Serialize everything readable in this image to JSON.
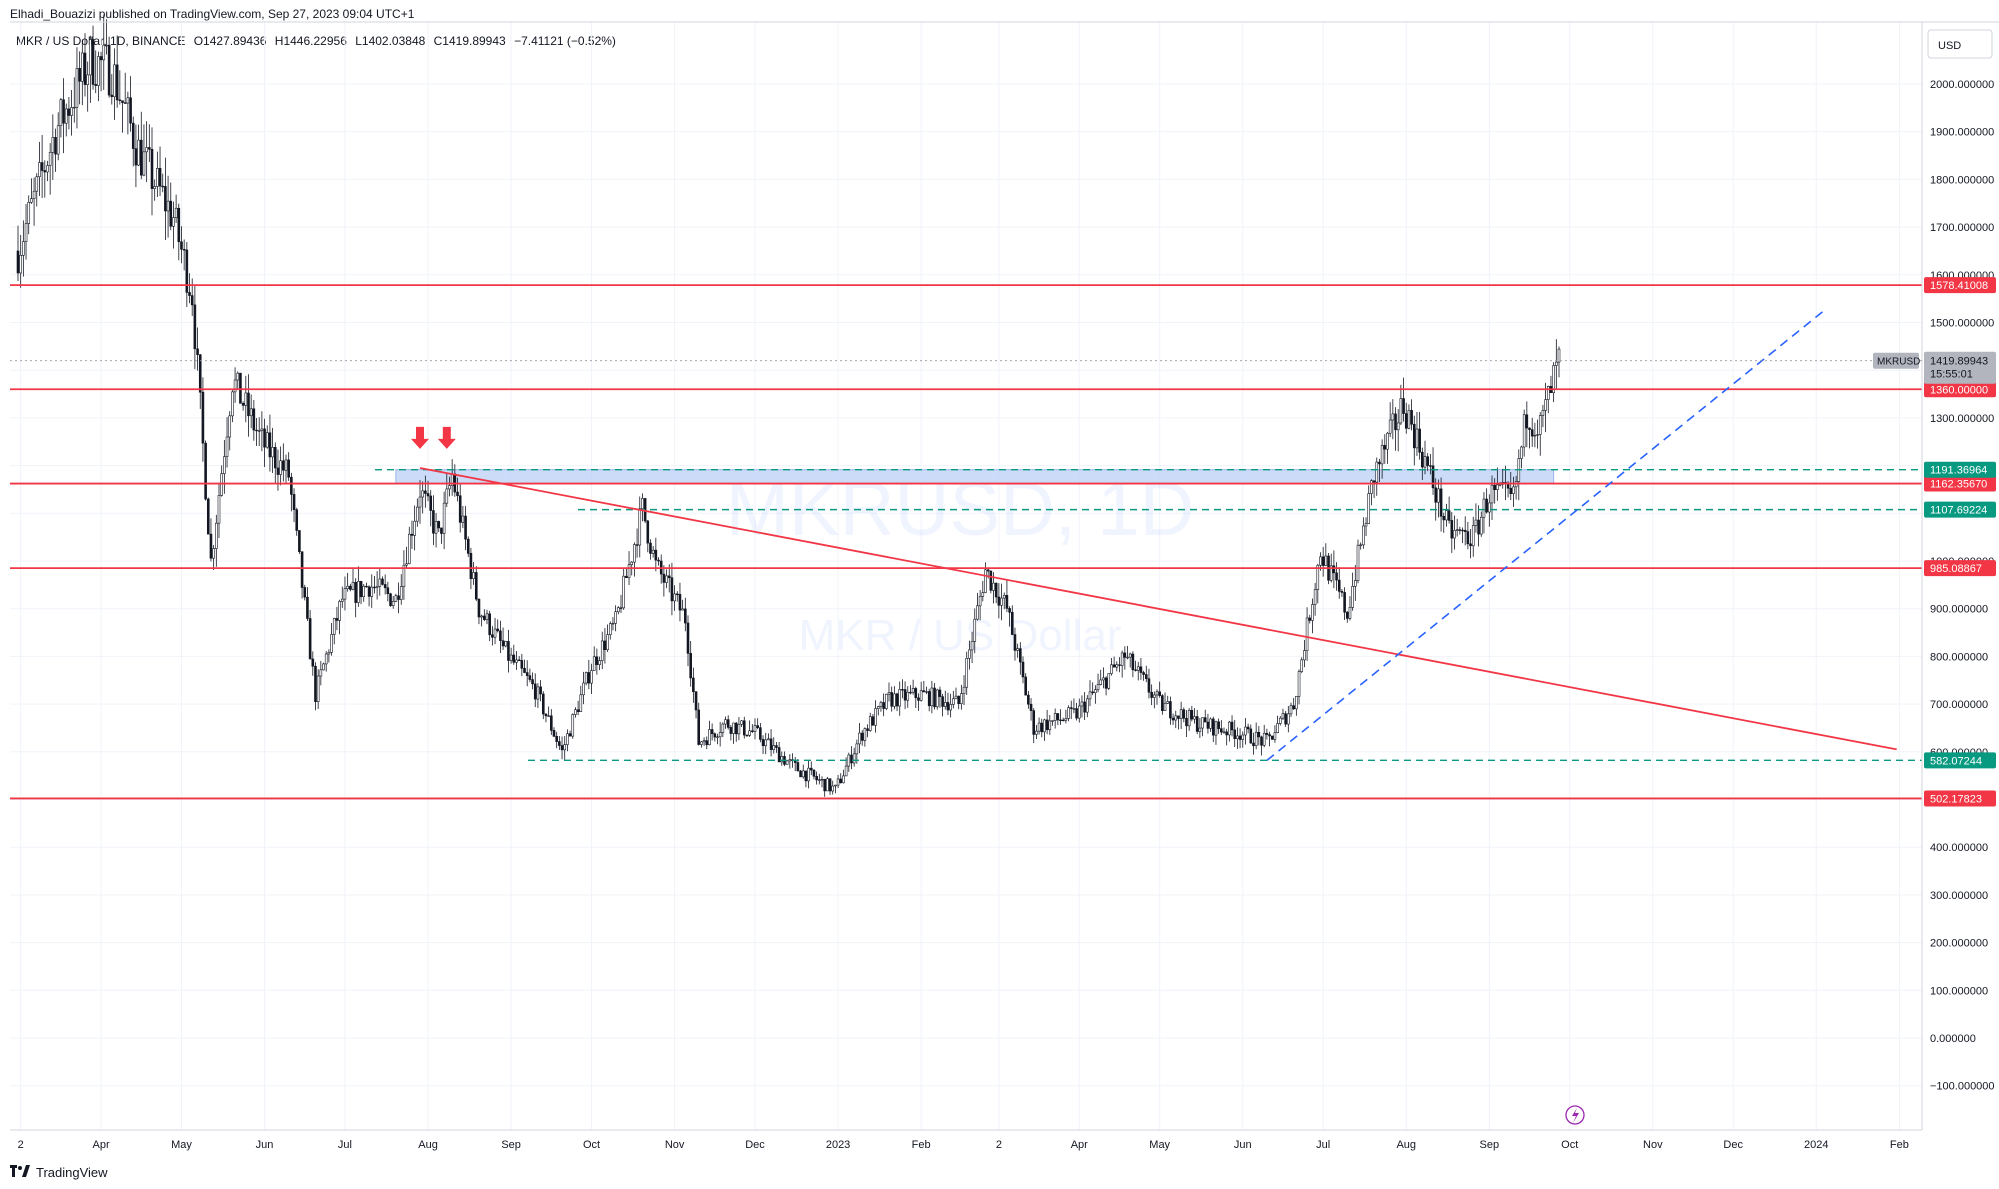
{
  "header": {
    "publisher": "Elhadi_Bouazizi published on TradingView.com, Sep 27, 2023 09:04 UTC+1"
  },
  "legend": {
    "symbol": "MKR / US Dollar, 1D, BINANCE",
    "open": "O1427.89436",
    "high": "H1446.22956",
    "low": "L1402.03848",
    "close": "C1419.89943",
    "change": "−7.41121 (−0.52%)"
  },
  "watermark": {
    "symbol": "MKRUSD, 1D",
    "name": "MKR / US Dollar"
  },
  "footer": {
    "logo_text": "TradingView"
  },
  "colors": {
    "resistance": "#f23645",
    "support_dashed": "#089981",
    "trend_dashed": "#2962ff",
    "zone_fill": "#bbd0f5",
    "candle": "#131722",
    "price_label": "#9598a1"
  },
  "chart_data": {
    "type": "candlestick",
    "currency": "USD",
    "y_ticks": [
      "−100.000000",
      "0.000000",
      "100.000000",
      "200.000000",
      "300.000000",
      "400.000000",
      "500.000000",
      "600.000000",
      "700.000000",
      "800.000000",
      "900.000000",
      "1000.000000",
      "1100.000000",
      "1200.000000",
      "1300.000000",
      "1400.000000",
      "1500.000000",
      "1600.000000",
      "1700.000000",
      "1800.000000",
      "1900.000000",
      "2000.000000"
    ],
    "x_ticks": [
      "2",
      "Apr",
      "May",
      "Jun",
      "Jul",
      "Aug",
      "Sep",
      "Oct",
      "Nov",
      "Dec",
      "2023",
      "Feb",
      "2",
      "Apr",
      "May",
      "Jun",
      "Jul",
      "Aug",
      "Sep",
      "Oct",
      "Nov",
      "Dec",
      "2024",
      "Feb"
    ],
    "horizontal_levels": [
      {
        "value": 1578.41008,
        "label": "1578.41008",
        "style": "solid",
        "color": "resistance"
      },
      {
        "value": 1360.0,
        "label": "1360.00000",
        "style": "solid",
        "color": "resistance"
      },
      {
        "value": 1162.3567,
        "label": "1162.35670",
        "style": "solid",
        "color": "resistance"
      },
      {
        "value": 985.08867,
        "label": "985.08867",
        "style": "solid",
        "color": "resistance"
      },
      {
        "value": 502.17823,
        "label": "502.17823",
        "style": "solid",
        "color": "resistance"
      },
      {
        "value": 1191.36964,
        "label": "1191.36964",
        "style": "dashed",
        "color": "support_dashed"
      },
      {
        "value": 1107.69224,
        "label": "1107.69224",
        "style": "dashed",
        "color": "support_dashed"
      },
      {
        "value": 582.07244,
        "label": "582.07244",
        "style": "dashed",
        "color": "support_dashed"
      }
    ],
    "current_price": {
      "symbol": "MKRUSD",
      "value": 1419.89943,
      "label": "1419.89943",
      "countdown": "15:55:01"
    },
    "close_path": [
      [
        "2022-03-01",
        1650
      ],
      [
        "2022-03-15",
        1900
      ],
      [
        "2022-03-28",
        2050
      ],
      [
        "2022-04-05",
        2030
      ],
      [
        "2022-04-15",
        1860
      ],
      [
        "2022-04-28",
        1720
      ],
      [
        "2022-05-05",
        1560
      ],
      [
        "2022-05-12",
        1000
      ],
      [
        "2022-05-20",
        1380
      ],
      [
        "2022-05-31",
        1250
      ],
      [
        "2022-06-10",
        1180
      ],
      [
        "2022-06-20",
        720
      ],
      [
        "2022-06-30",
        920
      ],
      [
        "2022-07-10",
        950
      ],
      [
        "2022-07-20",
        920
      ],
      [
        "2022-07-29",
        1150
      ],
      [
        "2022-08-05",
        1050
      ],
      [
        "2022-08-10",
        1180
      ],
      [
        "2022-08-20",
        900
      ],
      [
        "2022-08-31",
        800
      ],
      [
        "2022-09-10",
        730
      ],
      [
        "2022-09-20",
        600
      ],
      [
        "2022-10-01",
        780
      ],
      [
        "2022-10-10",
        870
      ],
      [
        "2022-10-20",
        1110
      ],
      [
        "2022-10-25",
        990
      ],
      [
        "2022-11-05",
        880
      ],
      [
        "2022-11-10",
        620
      ],
      [
        "2022-11-20",
        660
      ],
      [
        "2022-12-01",
        640
      ],
      [
        "2022-12-15",
        570
      ],
      [
        "2022-12-31",
        520
      ],
      [
        "2023-01-10",
        640
      ],
      [
        "2023-01-20",
        710
      ],
      [
        "2023-02-01",
        720
      ],
      [
        "2023-02-15",
        700
      ],
      [
        "2023-02-25",
        980
      ],
      [
        "2023-03-05",
        900
      ],
      [
        "2023-03-15",
        650
      ],
      [
        "2023-03-31",
        680
      ],
      [
        "2023-04-18",
        800
      ],
      [
        "2023-05-01",
        700
      ],
      [
        "2023-05-15",
        660
      ],
      [
        "2023-05-31",
        640
      ],
      [
        "2023-06-10",
        620
      ],
      [
        "2023-06-20",
        700
      ],
      [
        "2023-06-30",
        1020
      ],
      [
        "2023-07-10",
        890
      ],
      [
        "2023-07-20",
        1180
      ],
      [
        "2023-07-31",
        1330
      ],
      [
        "2023-08-08",
        1210
      ],
      [
        "2023-08-17",
        1060
      ],
      [
        "2023-08-26",
        1050
      ],
      [
        "2023-09-01",
        1140
      ],
      [
        "2023-09-10",
        1130
      ],
      [
        "2023-09-15",
        1310
      ],
      [
        "2023-09-20",
        1280
      ],
      [
        "2023-09-27",
        1420
      ]
    ],
    "trendlines": [
      {
        "from": [
          "2022-07-29",
          1195
        ],
        "to": [
          "2024-01-31",
          605
        ],
        "style": "solid",
        "color": "resistance"
      },
      {
        "from": [
          "2023-06-10",
          582
        ],
        "to": [
          "2024-01-05",
          1530
        ],
        "style": "dashed",
        "color": "trend_dashed"
      }
    ],
    "zone": {
      "from": "2022-07-20",
      "to": "2023-09-25",
      "low": 1162.3567,
      "high": 1191.36964
    },
    "annotations": [
      {
        "type": "arrow-down",
        "date": "2022-07-29",
        "value": 1235
      },
      {
        "type": "arrow-down",
        "date": "2022-08-08",
        "value": 1235
      }
    ]
  }
}
